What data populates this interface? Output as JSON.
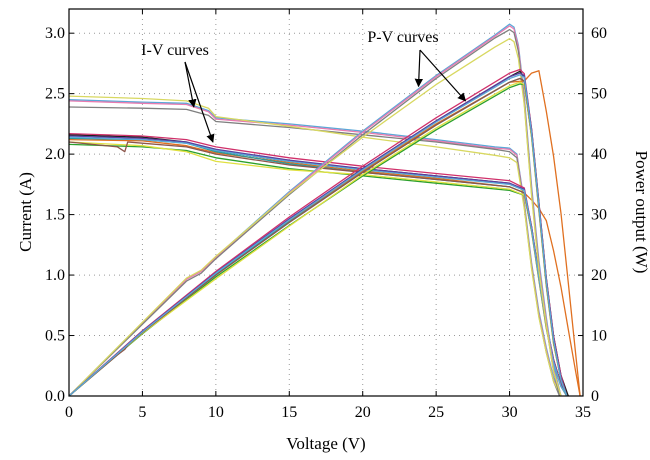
{
  "chart_data": {
    "type": "line",
    "title": "",
    "xlabel": "Voltage (V)",
    "ylabel_left": "Current (A)",
    "ylabel_right": "Power output (W)",
    "xlim": [
      0,
      35
    ],
    "ylim_left": [
      0,
      3.2
    ],
    "ylim_right": [
      0,
      64
    ],
    "x_ticks": [
      0,
      5,
      10,
      15,
      20,
      25,
      30,
      35
    ],
    "x_tick_labels": [
      "0",
      "5",
      "10",
      "15",
      "20",
      "25",
      "30",
      "35"
    ],
    "y_left_ticks": [
      0,
      0.5,
      1.0,
      1.5,
      2.0,
      2.5,
      3.0
    ],
    "y_left_tick_labels": [
      "0.0",
      "0.5",
      "1.0",
      "1.5",
      "2.0",
      "2.5",
      "3.0"
    ],
    "y_right_ticks": [
      0,
      10,
      20,
      30,
      40,
      50,
      60
    ],
    "y_right_tick_labels": [
      "0",
      "10",
      "20",
      "30",
      "40",
      "50",
      "60"
    ],
    "grid": true,
    "annotations": [
      {
        "text": "I-V curves",
        "points_to": [
          [
            8.5,
            2.39
          ],
          [
            9.8,
            2.1
          ]
        ]
      },
      {
        "text": "P-V curves",
        "points_to": [
          [
            23.8,
            2.56
          ],
          [
            27.0,
            2.44
          ]
        ]
      }
    ],
    "series": [
      {
        "axis": "left",
        "color": "#5aa8d8",
        "x": [
          0,
          5,
          8,
          9.5,
          10,
          15,
          20,
          25,
          29,
          30,
          30.5,
          31,
          31.5,
          32,
          32.5,
          33,
          33.5
        ],
        "y": [
          2.45,
          2.43,
          2.42,
          2.36,
          2.3,
          2.25,
          2.19,
          2.12,
          2.06,
          2.05,
          2.0,
          1.6,
          1.1,
          0.7,
          0.4,
          0.15,
          0.0
        ]
      },
      {
        "axis": "left",
        "color": "#e87bb0",
        "x": [
          0,
          5,
          8,
          9.5,
          10,
          15,
          20,
          25,
          29,
          30,
          30.5,
          31,
          31.5,
          32,
          32.5,
          33,
          33.5
        ],
        "y": [
          2.44,
          2.42,
          2.41,
          2.35,
          2.29,
          2.24,
          2.18,
          2.11,
          2.05,
          2.04,
          1.99,
          1.58,
          1.08,
          0.68,
          0.38,
          0.13,
          0.0
        ]
      },
      {
        "axis": "left",
        "color": "#7f7f7f",
        "x": [
          0,
          5,
          8,
          9.5,
          10,
          15,
          20,
          25,
          29,
          30,
          30.5,
          31,
          31.5,
          32,
          32.5,
          33,
          33.4
        ],
        "y": [
          2.39,
          2.38,
          2.37,
          2.32,
          2.27,
          2.22,
          2.16,
          2.1,
          2.04,
          2.02,
          1.97,
          1.56,
          1.06,
          0.66,
          0.36,
          0.12,
          0.0
        ]
      },
      {
        "axis": "left",
        "color": "#d8d860",
        "x": [
          0,
          5,
          8,
          9.5,
          10,
          15,
          20,
          25,
          29,
          30,
          30.5,
          31,
          31.5,
          32,
          32.5,
          33,
          33.5
        ],
        "y": [
          2.48,
          2.46,
          2.44,
          2.38,
          2.31,
          2.23,
          2.14,
          2.06,
          1.99,
          1.97,
          1.93,
          1.55,
          1.05,
          0.65,
          0.36,
          0.12,
          0.0
        ]
      },
      {
        "axis": "left",
        "color": "#1f1f1f",
        "x": [
          0,
          5,
          8,
          10,
          15,
          20,
          25,
          30,
          31,
          31.5,
          32,
          32.5,
          33,
          33.5,
          34
        ],
        "y": [
          2.16,
          2.14,
          2.1,
          2.03,
          1.94,
          1.88,
          1.82,
          1.76,
          1.7,
          1.4,
          1.0,
          0.6,
          0.3,
          0.1,
          0.0
        ]
      },
      {
        "axis": "left",
        "color": "#e07020",
        "x": [
          0,
          5,
          8,
          10,
          15,
          20,
          25,
          30,
          31,
          31.5,
          32,
          32.5,
          33,
          33.5,
          34,
          34.5,
          34.8
        ],
        "y": [
          2.12,
          2.11,
          2.07,
          2.01,
          1.93,
          1.86,
          1.8,
          1.73,
          1.68,
          1.62,
          1.55,
          1.45,
          1.2,
          0.9,
          0.55,
          0.2,
          0.0
        ]
      },
      {
        "axis": "left",
        "color": "#d0306a",
        "x": [
          0,
          5,
          8,
          10,
          15,
          20,
          25,
          30,
          31,
          31.5,
          32,
          32.5,
          33,
          33.5,
          33.9
        ],
        "y": [
          2.17,
          2.15,
          2.12,
          2.06,
          1.97,
          1.9,
          1.84,
          1.78,
          1.72,
          1.4,
          1.0,
          0.6,
          0.3,
          0.1,
          0.0
        ]
      },
      {
        "axis": "left",
        "color": "#2a9a9a",
        "x": [
          0,
          5,
          8,
          10,
          15,
          20,
          25,
          30,
          31,
          31.5,
          32,
          32.5,
          33,
          33.5,
          33.9
        ],
        "y": [
          2.13,
          2.12,
          2.09,
          2.02,
          1.92,
          1.85,
          1.79,
          1.73,
          1.68,
          1.38,
          0.98,
          0.58,
          0.28,
          0.08,
          0.0
        ]
      },
      {
        "axis": "left",
        "color": "#2ca02c",
        "x": [
          0,
          5,
          8,
          10,
          15,
          20,
          25,
          30,
          31,
          31.5,
          32,
          32.5,
          33,
          33.5,
          33.9
        ],
        "y": [
          2.08,
          2.06,
          2.03,
          1.97,
          1.88,
          1.82,
          1.76,
          1.7,
          1.66,
          1.36,
          0.96,
          0.56,
          0.26,
          0.08,
          0.0
        ]
      },
      {
        "axis": "left",
        "color": "#e0e040",
        "x": [
          0,
          5,
          8,
          10,
          15,
          20,
          25,
          30,
          31,
          31.5,
          32,
          32.5,
          33,
          33.5,
          33.9
        ],
        "y": [
          2.1,
          2.07,
          2.02,
          1.94,
          1.87,
          1.83,
          1.77,
          1.71,
          1.66,
          1.36,
          0.96,
          0.56,
          0.26,
          0.08,
          0.0
        ]
      },
      {
        "axis": "left",
        "color": "#5b3fa0",
        "x": [
          0,
          5,
          8,
          10,
          15,
          20,
          25,
          30,
          31,
          31.5,
          32,
          32.5,
          33,
          33.5,
          33.9
        ],
        "y": [
          2.15,
          2.13,
          2.1,
          2.04,
          1.95,
          1.88,
          1.82,
          1.76,
          1.71,
          1.39,
          0.99,
          0.59,
          0.29,
          0.09,
          0.0
        ]
      },
      {
        "axis": "left",
        "color": "#8c564b",
        "x": [
          0,
          3.3,
          3.8,
          4,
          5,
          8,
          10,
          15,
          20,
          25,
          30,
          31,
          31.5,
          32,
          32.5,
          33,
          33.5,
          33.9
        ],
        "y": [
          2.1,
          2.06,
          2.02,
          2.1,
          2.09,
          2.06,
          2.0,
          1.91,
          1.85,
          1.79,
          1.73,
          1.68,
          1.37,
          0.97,
          0.57,
          0.27,
          0.08,
          0.0
        ]
      },
      {
        "axis": "left",
        "color": "#5aa8d8",
        "x": [
          0,
          5,
          8,
          10,
          15,
          20,
          25,
          30,
          31,
          31.5,
          32,
          32.5,
          33,
          33.5,
          33.9
        ],
        "y": [
          2.14,
          2.12,
          2.09,
          2.03,
          1.94,
          1.87,
          1.81,
          1.75,
          1.7,
          1.38,
          0.98,
          0.58,
          0.28,
          0.08,
          0.0
        ]
      },
      {
        "axis": "right",
        "color": "#5aa8d8",
        "x": [
          0,
          8,
          9,
          10,
          15,
          20,
          25,
          29,
          30,
          30.3,
          30.6,
          31,
          31.5,
          32,
          32.5,
          33,
          33.5
        ],
        "y": [
          0,
          19.4,
          20.7,
          23.0,
          33.8,
          43.8,
          53.0,
          59.7,
          61.5,
          61.0,
          58.0,
          49.6,
          34.7,
          22.4,
          13.0,
          5.0,
          0
        ]
      },
      {
        "axis": "right",
        "color": "#e87bb0",
        "x": [
          0,
          8,
          9,
          10,
          15,
          20,
          25,
          29,
          30,
          30.3,
          30.6,
          31,
          31.5,
          32,
          32.5,
          33,
          33.5
        ],
        "y": [
          0,
          19.3,
          20.6,
          22.9,
          33.6,
          43.6,
          52.8,
          59.5,
          61.2,
          60.7,
          57.7,
          49.0,
          34.0,
          21.8,
          12.4,
          4.3,
          0
        ]
      },
      {
        "axis": "right",
        "color": "#7f7f7f",
        "x": [
          0,
          8,
          9,
          10,
          15,
          20,
          25,
          29,
          30,
          30.3,
          30.6,
          31,
          31.5,
          32,
          32.5,
          33,
          33.4
        ],
        "y": [
          0,
          19.0,
          20.3,
          22.7,
          33.3,
          43.2,
          52.5,
          59.2,
          60.6,
          60.1,
          57.0,
          48.4,
          33.4,
          21.1,
          11.7,
          4.0,
          0
        ]
      },
      {
        "axis": "right",
        "color": "#d8d860",
        "x": [
          0,
          8,
          9,
          10,
          15,
          20,
          25,
          29,
          30,
          30.3,
          30.6,
          31,
          31.5,
          32,
          32.5,
          33,
          33.5
        ],
        "y": [
          0,
          19.5,
          20.8,
          23.1,
          33.5,
          42.8,
          51.5,
          57.7,
          59.1,
          58.6,
          55.8,
          48.1,
          33.1,
          20.8,
          11.7,
          4.0,
          0
        ]
      },
      {
        "axis": "right",
        "color": "#1f1f1f",
        "x": [
          0,
          5,
          10,
          15,
          20,
          25,
          30,
          30.7,
          31,
          31.5,
          32,
          32.5,
          33,
          33.5,
          34
        ],
        "y": [
          0,
          10.7,
          20.3,
          29.1,
          37.6,
          45.5,
          52.8,
          53.7,
          52.7,
          44.1,
          32.0,
          19.5,
          9.9,
          3.4,
          0
        ]
      },
      {
        "axis": "right",
        "color": "#e07020",
        "x": [
          0,
          5,
          10,
          15,
          20,
          25,
          30,
          31,
          31.5,
          32,
          32.5,
          33,
          33.5,
          34,
          34.5,
          34.8
        ],
        "y": [
          0,
          10.6,
          20.1,
          29.0,
          37.2,
          45.0,
          51.9,
          52.1,
          53.4,
          53.8,
          47.1,
          39.6,
          30.2,
          18.7,
          6.9,
          0
        ]
      },
      {
        "axis": "right",
        "color": "#d0306a",
        "x": [
          0,
          5,
          10,
          15,
          20,
          25,
          30,
          30.7,
          31,
          31.5,
          32,
          32.5,
          33,
          33.5,
          33.9
        ],
        "y": [
          0,
          10.8,
          20.6,
          29.6,
          38.0,
          46.0,
          53.4,
          54.0,
          53.3,
          44.1,
          32.0,
          19.5,
          9.9,
          3.4,
          0
        ]
      },
      {
        "axis": "right",
        "color": "#2a9a9a",
        "x": [
          0,
          5,
          10,
          15,
          20,
          25,
          30,
          30.7,
          31,
          31.5,
          32,
          32.5,
          33,
          33.5,
          33.9
        ],
        "y": [
          0,
          10.6,
          20.2,
          28.8,
          37.0,
          44.8,
          51.9,
          52.5,
          52.1,
          43.5,
          31.4,
          18.9,
          9.2,
          2.7,
          0
        ]
      },
      {
        "axis": "right",
        "color": "#2ca02c",
        "x": [
          0,
          5,
          10,
          15,
          20,
          25,
          30,
          30.7,
          31,
          31.5,
          32,
          32.5,
          33,
          33.5,
          33.9
        ],
        "y": [
          0,
          10.3,
          19.7,
          28.2,
          36.4,
          44.0,
          51.0,
          51.6,
          51.5,
          42.8,
          30.7,
          18.2,
          8.6,
          2.7,
          0
        ]
      },
      {
        "axis": "right",
        "color": "#e0e040",
        "x": [
          0,
          5,
          10,
          15,
          20,
          25,
          30,
          30.7,
          31,
          31.5,
          32,
          32.5,
          33,
          33.5,
          33.9
        ],
        "y": [
          0,
          10.4,
          19.4,
          28.1,
          36.6,
          44.3,
          51.3,
          51.9,
          51.5,
          42.8,
          30.7,
          18.2,
          8.6,
          2.7,
          0
        ]
      },
      {
        "axis": "right",
        "color": "#5b3fa0",
        "x": [
          0,
          5,
          10,
          15,
          20,
          25,
          30,
          30.7,
          31,
          31.5,
          32,
          32.5,
          33,
          33.5,
          33.9
        ],
        "y": [
          0,
          10.7,
          20.4,
          29.3,
          37.6,
          45.5,
          52.8,
          53.4,
          53.0,
          43.8,
          31.7,
          19.2,
          9.6,
          3.0,
          0
        ]
      },
      {
        "axis": "right",
        "color": "#8c564b",
        "x": [
          0,
          3.3,
          3.8,
          4,
          5,
          10,
          15,
          20,
          25,
          30,
          30.7,
          31,
          31.5,
          32,
          32.5,
          33,
          33.5,
          33.9
        ],
        "y": [
          0,
          6.8,
          7.7,
          8.4,
          10.5,
          20.0,
          28.7,
          37.0,
          44.8,
          51.9,
          52.5,
          52.1,
          43.2,
          31.0,
          18.5,
          8.9,
          2.7,
          0
        ]
      },
      {
        "axis": "right",
        "color": "#5aa8d8",
        "x": [
          0,
          5,
          10,
          15,
          20,
          25,
          30,
          30.7,
          31,
          31.5,
          32,
          32.5,
          33,
          33.5,
          33.9
        ],
        "y": [
          0,
          10.6,
          20.3,
          29.1,
          37.4,
          45.3,
          52.5,
          53.1,
          52.7,
          43.5,
          31.4,
          18.9,
          9.2,
          2.7,
          0
        ]
      }
    ]
  }
}
